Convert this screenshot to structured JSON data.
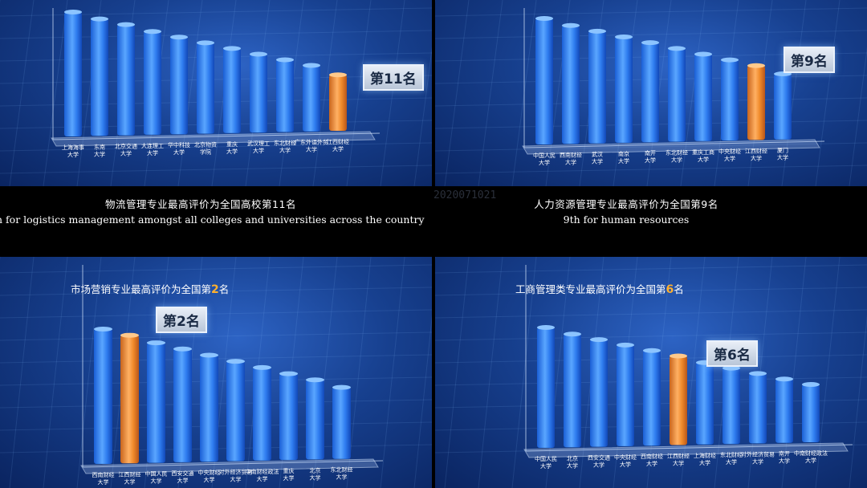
{
  "captions": {
    "logistics": {
      "zh": "物流管理专业最高评价为全国高校第11名",
      "en": "th for logistics management amongst all colleges and universities across the country"
    },
    "hr": {
      "zh": "人力资源管理专业最高评价为全国第9名",
      "en": "9th for human resources"
    }
  },
  "watermark": "2020071021",
  "colors": {
    "bar": "#2f7df0",
    "highlight": "#f08a2a",
    "background": "#17408f"
  },
  "chart_data": [
    {
      "type": "bar",
      "title": "",
      "rank_badge": "第11名",
      "categories": [
        "上海海事大学",
        "东南大学",
        "北京交通大学",
        "大连理工大学",
        "华中科技大学",
        "北京物资学院",
        "重庆大学",
        "武汉理工大学",
        "东北财经大学",
        "广东外语外贸大学",
        "江西财经大学"
      ],
      "values": [
        10,
        9.4,
        8.9,
        8.3,
        7.8,
        7.3,
        6.8,
        6.3,
        5.8,
        5.3,
        4.5
      ],
      "highlight_index": 10
    },
    {
      "type": "bar",
      "title": "",
      "rank_badge": "第9名",
      "categories": [
        "中国人民大学",
        "西南财经大学",
        "武汉大学",
        "南京大学",
        "南开大学",
        "东北财经大学",
        "重庆工商大学",
        "中央财经大学",
        "江西财经大学",
        "厦门大学"
      ],
      "values": [
        10,
        9.4,
        8.9,
        8.4,
        7.9,
        7.4,
        6.9,
        6.4,
        5.9,
        5.2
      ],
      "highlight_index": 8
    },
    {
      "type": "bar",
      "title": "市场营销专业最高评价为全国第2名",
      "title_prefix": "市场营销专业最高评价为全国第",
      "title_rank": "2",
      "title_suffix": "名",
      "rank_badge": "第2名",
      "categories": [
        "西南财经大学",
        "江西财经大学",
        "中国人民大学",
        "西安交通大学",
        "中央财经大学",
        "对外经济贸易大学",
        "中南财经政法大学",
        "重庆大学",
        "北京大学",
        "东北财经大学"
      ],
      "values": [
        10,
        9.5,
        8.9,
        8.4,
        7.9,
        7.4,
        6.9,
        6.4,
        5.9,
        5.3
      ],
      "highlight_index": 1
    },
    {
      "type": "bar",
      "title": "工商管理类专业最高评价为全国第6名",
      "title_prefix": "工商管理类专业最高评价为全国第",
      "title_rank": "6",
      "title_suffix": "名",
      "rank_badge": "第6名",
      "categories": [
        "中国人民大学",
        "北京大学",
        "西安交通大学",
        "中央财经大学",
        "西南财经大学",
        "江西财经大学",
        "上海财经大学",
        "东北财经大学",
        "对外经济贸易大学",
        "南开大学",
        "中南财经政法大学"
      ],
      "values": [
        10,
        9.4,
        8.9,
        8.4,
        7.9,
        7.4,
        6.8,
        6.3,
        5.8,
        5.3,
        4.8
      ],
      "highlight_index": 5
    }
  ]
}
